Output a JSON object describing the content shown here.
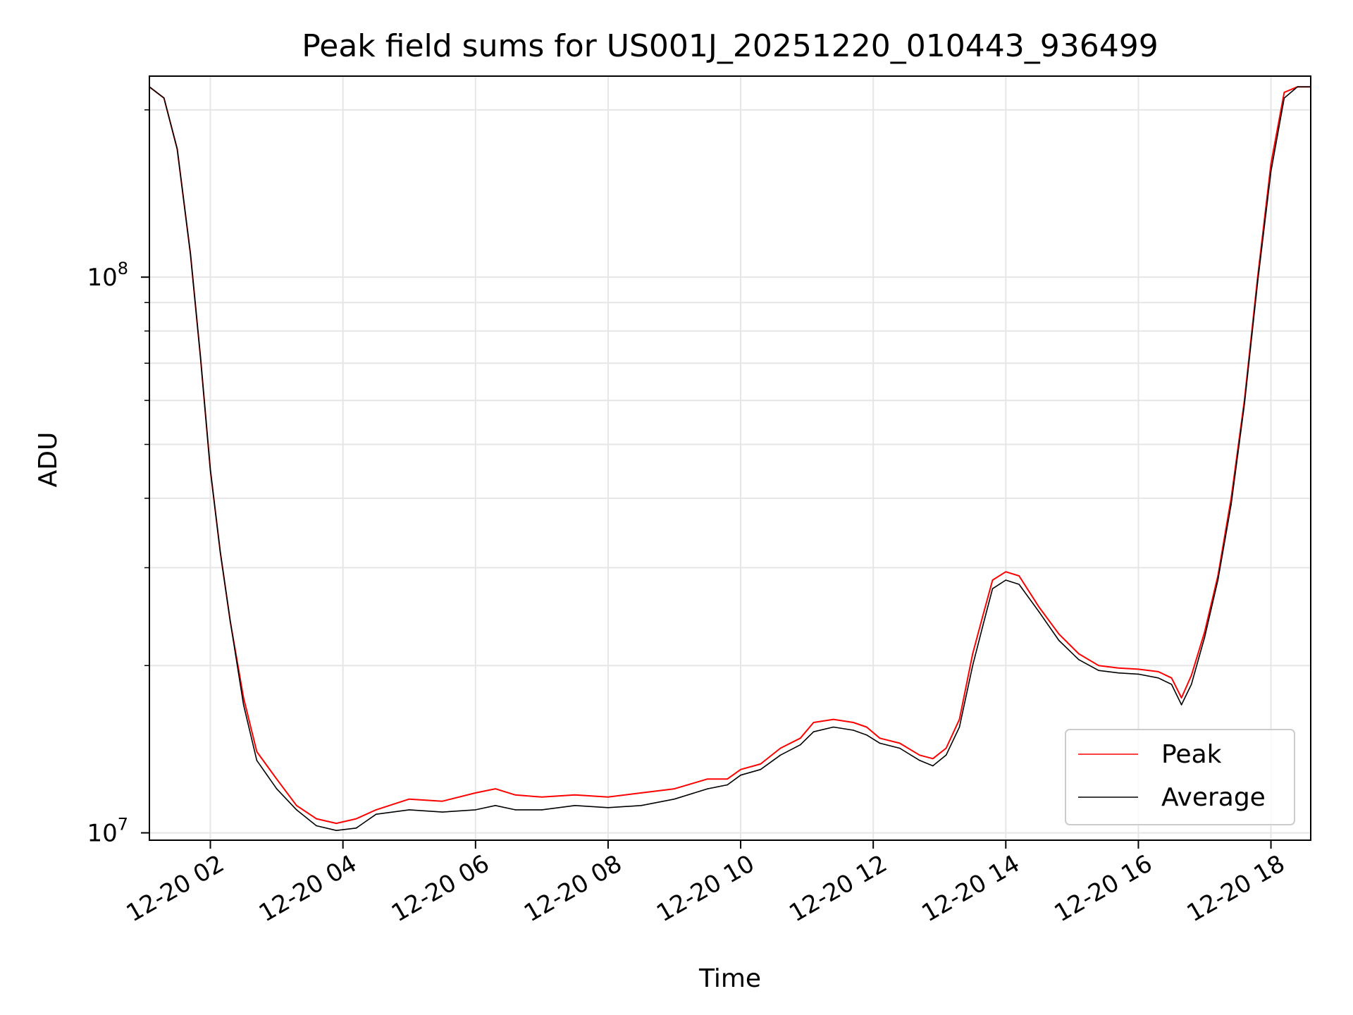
{
  "chart_data": {
    "type": "line",
    "title": "Peak field sums for US001J_20251220_010443_936499",
    "xlabel": "Time",
    "ylabel": "ADU",
    "yscale": "log",
    "ylim": [
      9700000.0,
      230000000.0
    ],
    "xlim_hours": [
      1.08,
      18.6
    ],
    "x_ticks": [
      {
        "hour": 2,
        "label": "12-20 02"
      },
      {
        "hour": 4,
        "label": "12-20 04"
      },
      {
        "hour": 6,
        "label": "12-20 06"
      },
      {
        "hour": 8,
        "label": "12-20 08"
      },
      {
        "hour": 10,
        "label": "12-20 10"
      },
      {
        "hour": 12,
        "label": "12-20 12"
      },
      {
        "hour": 14,
        "label": "12-20 14"
      },
      {
        "hour": 16,
        "label": "12-20 16"
      },
      {
        "hour": 18,
        "label": "12-20 18"
      }
    ],
    "y_ticks": [
      {
        "value": 10000000.0,
        "base": "10",
        "exp": "7"
      },
      {
        "value": 100000000.0,
        "base": "10",
        "exp": "8"
      }
    ],
    "grid": true,
    "legend_position": "lower-right",
    "series": [
      {
        "name": "Peak",
        "color": "#ff0000",
        "x": [
          1.08,
          1.3,
          1.5,
          1.7,
          1.85,
          2.0,
          2.15,
          2.3,
          2.5,
          2.7,
          3.0,
          3.3,
          3.6,
          3.9,
          4.2,
          4.5,
          5.0,
          5.5,
          6.0,
          6.3,
          6.6,
          7.0,
          7.5,
          8.0,
          8.5,
          9.0,
          9.5,
          9.8,
          10.0,
          10.3,
          10.6,
          10.9,
          11.1,
          11.4,
          11.7,
          11.9,
          12.1,
          12.4,
          12.7,
          12.9,
          13.1,
          13.3,
          13.5,
          13.65,
          13.8,
          14.0,
          14.2,
          14.5,
          14.8,
          15.1,
          15.4,
          15.7,
          16.0,
          16.3,
          16.5,
          16.65,
          16.8,
          17.0,
          17.2,
          17.4,
          17.6,
          17.8,
          18.0,
          18.2,
          18.4,
          18.6
        ],
        "y": [
          220000000.0,
          210000000.0,
          170000000.0,
          110000000.0,
          72000000.0,
          45000000.0,
          32000000.0,
          24000000.0,
          17500000.0,
          14000000.0,
          12500000.0,
          11200000.0,
          10600000.0,
          10400000.0,
          10600000.0,
          11000000.0,
          11500000.0,
          11400000.0,
          11800000.0,
          12000000.0,
          11700000.0,
          11600000.0,
          11700000.0,
          11600000.0,
          11800000.0,
          12000000.0,
          12500000.0,
          12500000.0,
          13000000.0,
          13300000.0,
          14200000.0,
          14800000.0,
          15800000.0,
          16000000.0,
          15800000.0,
          15500000.0,
          14800000.0,
          14500000.0,
          13800000.0,
          13600000.0,
          14200000.0,
          16000000.0,
          21000000.0,
          24500000.0,
          28500000.0,
          29500000.0,
          29000000.0,
          25500000.0,
          22800000.0,
          21000000.0,
          20000000.0,
          19800000.0,
          19700000.0,
          19500000.0,
          19000000.0,
          17500000.0,
          19200000.0,
          23000000.0,
          29000000.0,
          40000000.0,
          60000000.0,
          100000000.0,
          160000000.0,
          215000000.0,
          220000000.0,
          220000000.0
        ]
      },
      {
        "name": "Average",
        "color": "#000000",
        "x": [
          1.08,
          1.3,
          1.5,
          1.7,
          1.85,
          2.0,
          2.15,
          2.3,
          2.5,
          2.7,
          3.0,
          3.3,
          3.6,
          3.9,
          4.2,
          4.5,
          5.0,
          5.5,
          6.0,
          6.3,
          6.6,
          7.0,
          7.5,
          8.0,
          8.5,
          9.0,
          9.5,
          9.8,
          10.0,
          10.3,
          10.6,
          10.9,
          11.1,
          11.4,
          11.7,
          11.9,
          12.1,
          12.4,
          12.7,
          12.9,
          13.1,
          13.3,
          13.5,
          13.65,
          13.8,
          14.0,
          14.2,
          14.5,
          14.8,
          15.1,
          15.4,
          15.7,
          16.0,
          16.3,
          16.5,
          16.65,
          16.8,
          17.0,
          17.2,
          17.4,
          17.6,
          17.8,
          18.0,
          18.2,
          18.4,
          18.6
        ],
        "y": [
          220000000.0,
          210000000.0,
          170000000.0,
          110000000.0,
          72000000.0,
          45000000.0,
          32000000.0,
          24000000.0,
          17000000.0,
          13500000.0,
          12000000.0,
          11000000.0,
          10300000.0,
          10100000.0,
          10200000.0,
          10800000.0,
          11000000.0,
          10900000.0,
          11000000.0,
          11200000.0,
          11000000.0,
          11000000.0,
          11200000.0,
          11100000.0,
          11200000.0,
          11500000.0,
          12000000.0,
          12200000.0,
          12700000.0,
          13000000.0,
          13800000.0,
          14400000.0,
          15200000.0,
          15500000.0,
          15300000.0,
          15000000.0,
          14500000.0,
          14200000.0,
          13500000.0,
          13200000.0,
          13800000.0,
          15500000.0,
          20000000.0,
          23500000.0,
          27500000.0,
          28500000.0,
          28000000.0,
          25000000.0,
          22200000.0,
          20500000.0,
          19600000.0,
          19400000.0,
          19300000.0,
          19000000.0,
          18500000.0,
          17000000.0,
          18500000.0,
          22500000.0,
          28500000.0,
          39000000.0,
          59000000.0,
          98000000.0,
          155000000.0,
          210000000.0,
          220000000.0,
          220000000.0
        ]
      }
    ]
  }
}
